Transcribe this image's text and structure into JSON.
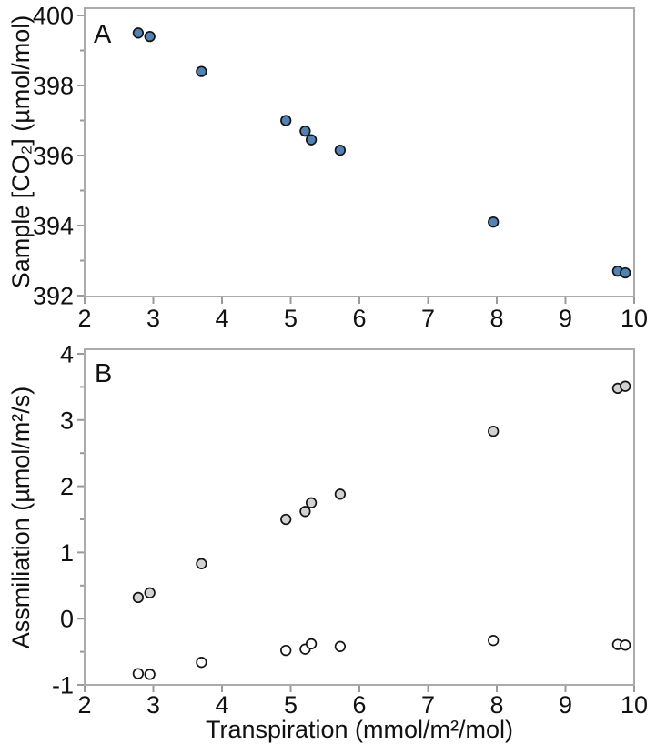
{
  "chart_data": [
    {
      "id": "A",
      "type": "scatter",
      "panel_label": "A",
      "xlabel": "",
      "ylabel": "Sample [CO₂] (µmol/mol)",
      "xlim": [
        2,
        10
      ],
      "ylim": [
        392,
        400
      ],
      "xticks": [
        2,
        3,
        4,
        5,
        6,
        7,
        8,
        9,
        10
      ],
      "yticks": [
        392,
        394,
        396,
        398,
        400
      ],
      "y_minor_step": 1,
      "grid": false,
      "legend": "none",
      "series": [
        {
          "name": "sample-co2",
          "marker": "circle",
          "fill": "#5282b4",
          "stroke": "#141414",
          "x": [
            2.78,
            2.95,
            3.7,
            4.93,
            5.21,
            5.3,
            5.72,
            7.95,
            9.76,
            9.87
          ],
          "y": [
            399.5,
            399.4,
            398.4,
            397.0,
            396.7,
            396.45,
            396.15,
            394.1,
            392.7,
            392.65
          ]
        }
      ]
    },
    {
      "id": "B",
      "type": "scatter",
      "panel_label": "B",
      "xlabel": "Transpiration (mmol/m²/mol)",
      "ylabel": "Assmiliation (µmol/m²/s)",
      "xlim": [
        2,
        10
      ],
      "ylim": [
        -1,
        4
      ],
      "xticks": [
        2,
        3,
        4,
        5,
        6,
        7,
        8,
        9,
        10
      ],
      "yticks": [
        -1,
        0,
        1,
        2,
        3,
        4
      ],
      "y_minor_step": 0.5,
      "grid": false,
      "legend": "none",
      "series": [
        {
          "name": "assimilation-filled",
          "marker": "circle",
          "fill": "#d2d2d2",
          "stroke": "#141414",
          "x": [
            2.78,
            2.95,
            3.7,
            4.93,
            5.21,
            5.3,
            5.72,
            7.95,
            9.76,
            9.87
          ],
          "y": [
            0.32,
            0.39,
            0.83,
            1.5,
            1.62,
            1.75,
            1.88,
            2.83,
            3.48,
            3.51
          ]
        },
        {
          "name": "assimilation-open",
          "marker": "circle",
          "fill": "#ffffff",
          "stroke": "#141414",
          "x": [
            2.78,
            2.95,
            3.7,
            4.93,
            5.21,
            5.3,
            5.72,
            7.95,
            9.76,
            9.87
          ],
          "y": [
            -0.83,
            -0.84,
            -0.66,
            -0.48,
            -0.46,
            -0.38,
            -0.42,
            -0.33,
            -0.39,
            -0.4
          ]
        }
      ]
    }
  ],
  "style": {
    "frame_color": "#ababab",
    "tick_color": "#9a9a9a",
    "text_color": "#111111",
    "background": "#ffffff"
  }
}
